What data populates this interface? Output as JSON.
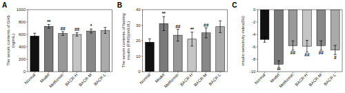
{
  "chart_data": [
    {
      "type": "bar",
      "title": "A",
      "y_label": "The serum contents of GHb\n(ng/mL)",
      "categories": [
        "Normal",
        "Model",
        "Metformin",
        "BACR-H",
        "BACR-M",
        "BACR-L"
      ],
      "values": [
        575,
        730,
        615,
        600,
        655,
        665
      ],
      "errors": [
        45,
        30,
        30,
        28,
        32,
        48
      ],
      "colors": [
        "#111111",
        "#7a7a7a",
        "#999999",
        "#c5c5c5",
        "#888888",
        "#aaaaaa"
      ],
      "annotations": [
        null,
        "**",
        "##",
        "##",
        "*",
        null
      ],
      "ylim": [
        0,
        1000
      ],
      "yticks": [
        0,
        200,
        400,
        600,
        800,
        1000
      ],
      "grid": false
    },
    {
      "type": "bar",
      "title": "B",
      "y_label": "The serum contents of fasting\ninsulin (FINS)(mIU/L)",
      "categories": [
        "Normal",
        "Model",
        "Metformin",
        "BACR-H",
        "BACR-M",
        "BACR-L"
      ],
      "values": [
        19,
        31,
        23.5,
        21,
        25,
        29
      ],
      "errors": [
        2.2,
        4.5,
        3.8,
        4.5,
        3.2,
        3.8
      ],
      "colors": [
        "#111111",
        "#7a7a7a",
        "#999999",
        "#c5c5c5",
        "#888888",
        "#aaaaaa"
      ],
      "annotations": [
        null,
        "**",
        "##",
        "**",
        "##",
        null
      ],
      "ylim": [
        0,
        40
      ],
      "yticks": [
        0,
        10,
        20,
        30,
        40
      ],
      "grid": false
    },
    {
      "type": "bar",
      "title": "C",
      "y_label": "insulin sensitivity index(ISI)",
      "categories": [
        "Normal",
        "Model",
        "Metformin",
        "BACR-H",
        "BACR-M",
        "BACR-L"
      ],
      "values": [
        -4.8,
        -8.8,
        -5.8,
        -5.9,
        -5.8,
        -6.5
      ],
      "errors": [
        0.45,
        0.55,
        0.75,
        0.95,
        0.75,
        0.75
      ],
      "colors": [
        "#111111",
        "#7a7a7a",
        "#999999",
        "#c5c5c5",
        "#888888",
        "#aaaaaa"
      ],
      "annotations": [
        null,
        "**",
        "##",
        "##",
        "##",
        "#"
      ],
      "ylim": [
        -10,
        0
      ],
      "yticks": [
        -10,
        -8,
        -6,
        -4,
        -2,
        0
      ],
      "grid": false
    }
  ]
}
